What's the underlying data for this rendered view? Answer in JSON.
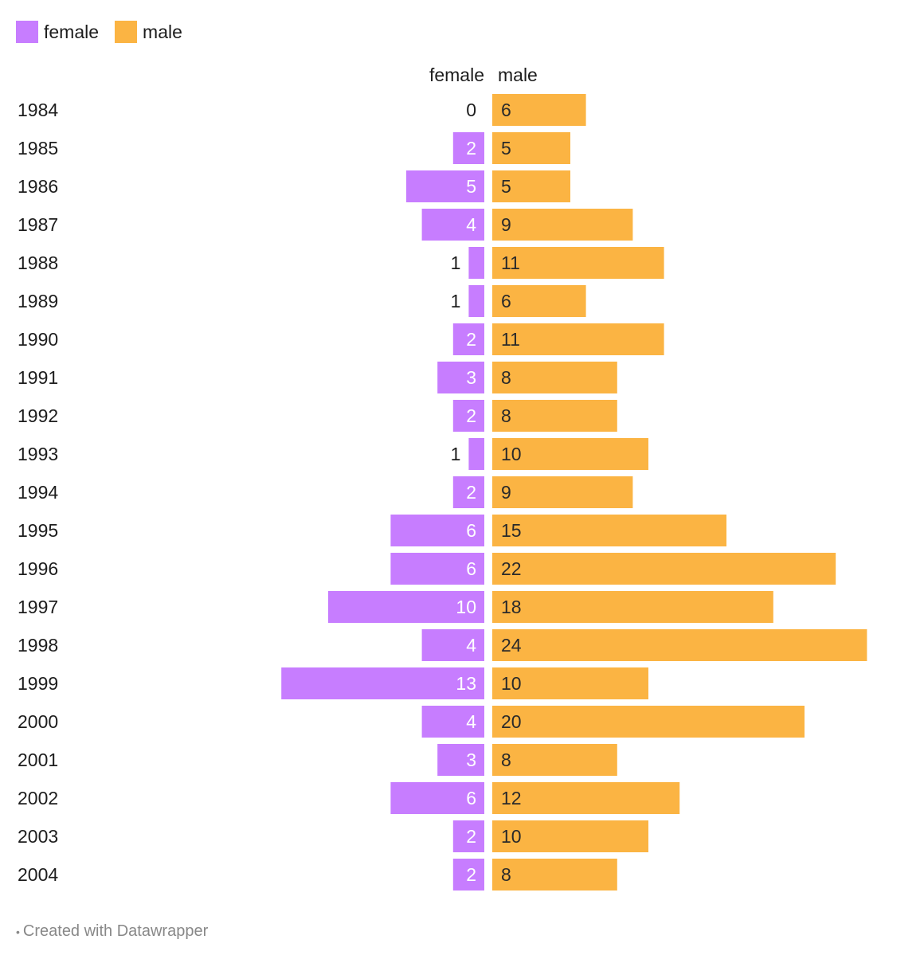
{
  "legend": {
    "items": [
      {
        "label": "female",
        "color": "#c77dff"
      },
      {
        "label": "male",
        "color": "#fbb443"
      }
    ]
  },
  "chart_data": {
    "type": "bar",
    "orientation": "horizontal-diverging",
    "column_headers": {
      "left": "female",
      "right": "male"
    },
    "categories": [
      "1984",
      "1985",
      "1986",
      "1987",
      "1988",
      "1989",
      "1990",
      "1991",
      "1992",
      "1993",
      "1994",
      "1995",
      "1996",
      "1997",
      "1998",
      "1999",
      "2000",
      "2001",
      "2002",
      "2003",
      "2004"
    ],
    "series": [
      {
        "name": "female",
        "color": "#c77dff",
        "values": [
          0,
          2,
          5,
          4,
          1,
          1,
          2,
          3,
          2,
          1,
          2,
          6,
          6,
          10,
          4,
          13,
          4,
          3,
          6,
          2,
          2
        ]
      },
      {
        "name": "male",
        "color": "#fbb443",
        "values": [
          6,
          5,
          5,
          9,
          11,
          6,
          11,
          8,
          8,
          10,
          9,
          15,
          22,
          18,
          24,
          10,
          20,
          8,
          12,
          10,
          8
        ]
      }
    ],
    "grid": false,
    "legend_position": "top-left"
  },
  "footer": {
    "bullet": "•",
    "text": "Created with Datawrapper"
  }
}
